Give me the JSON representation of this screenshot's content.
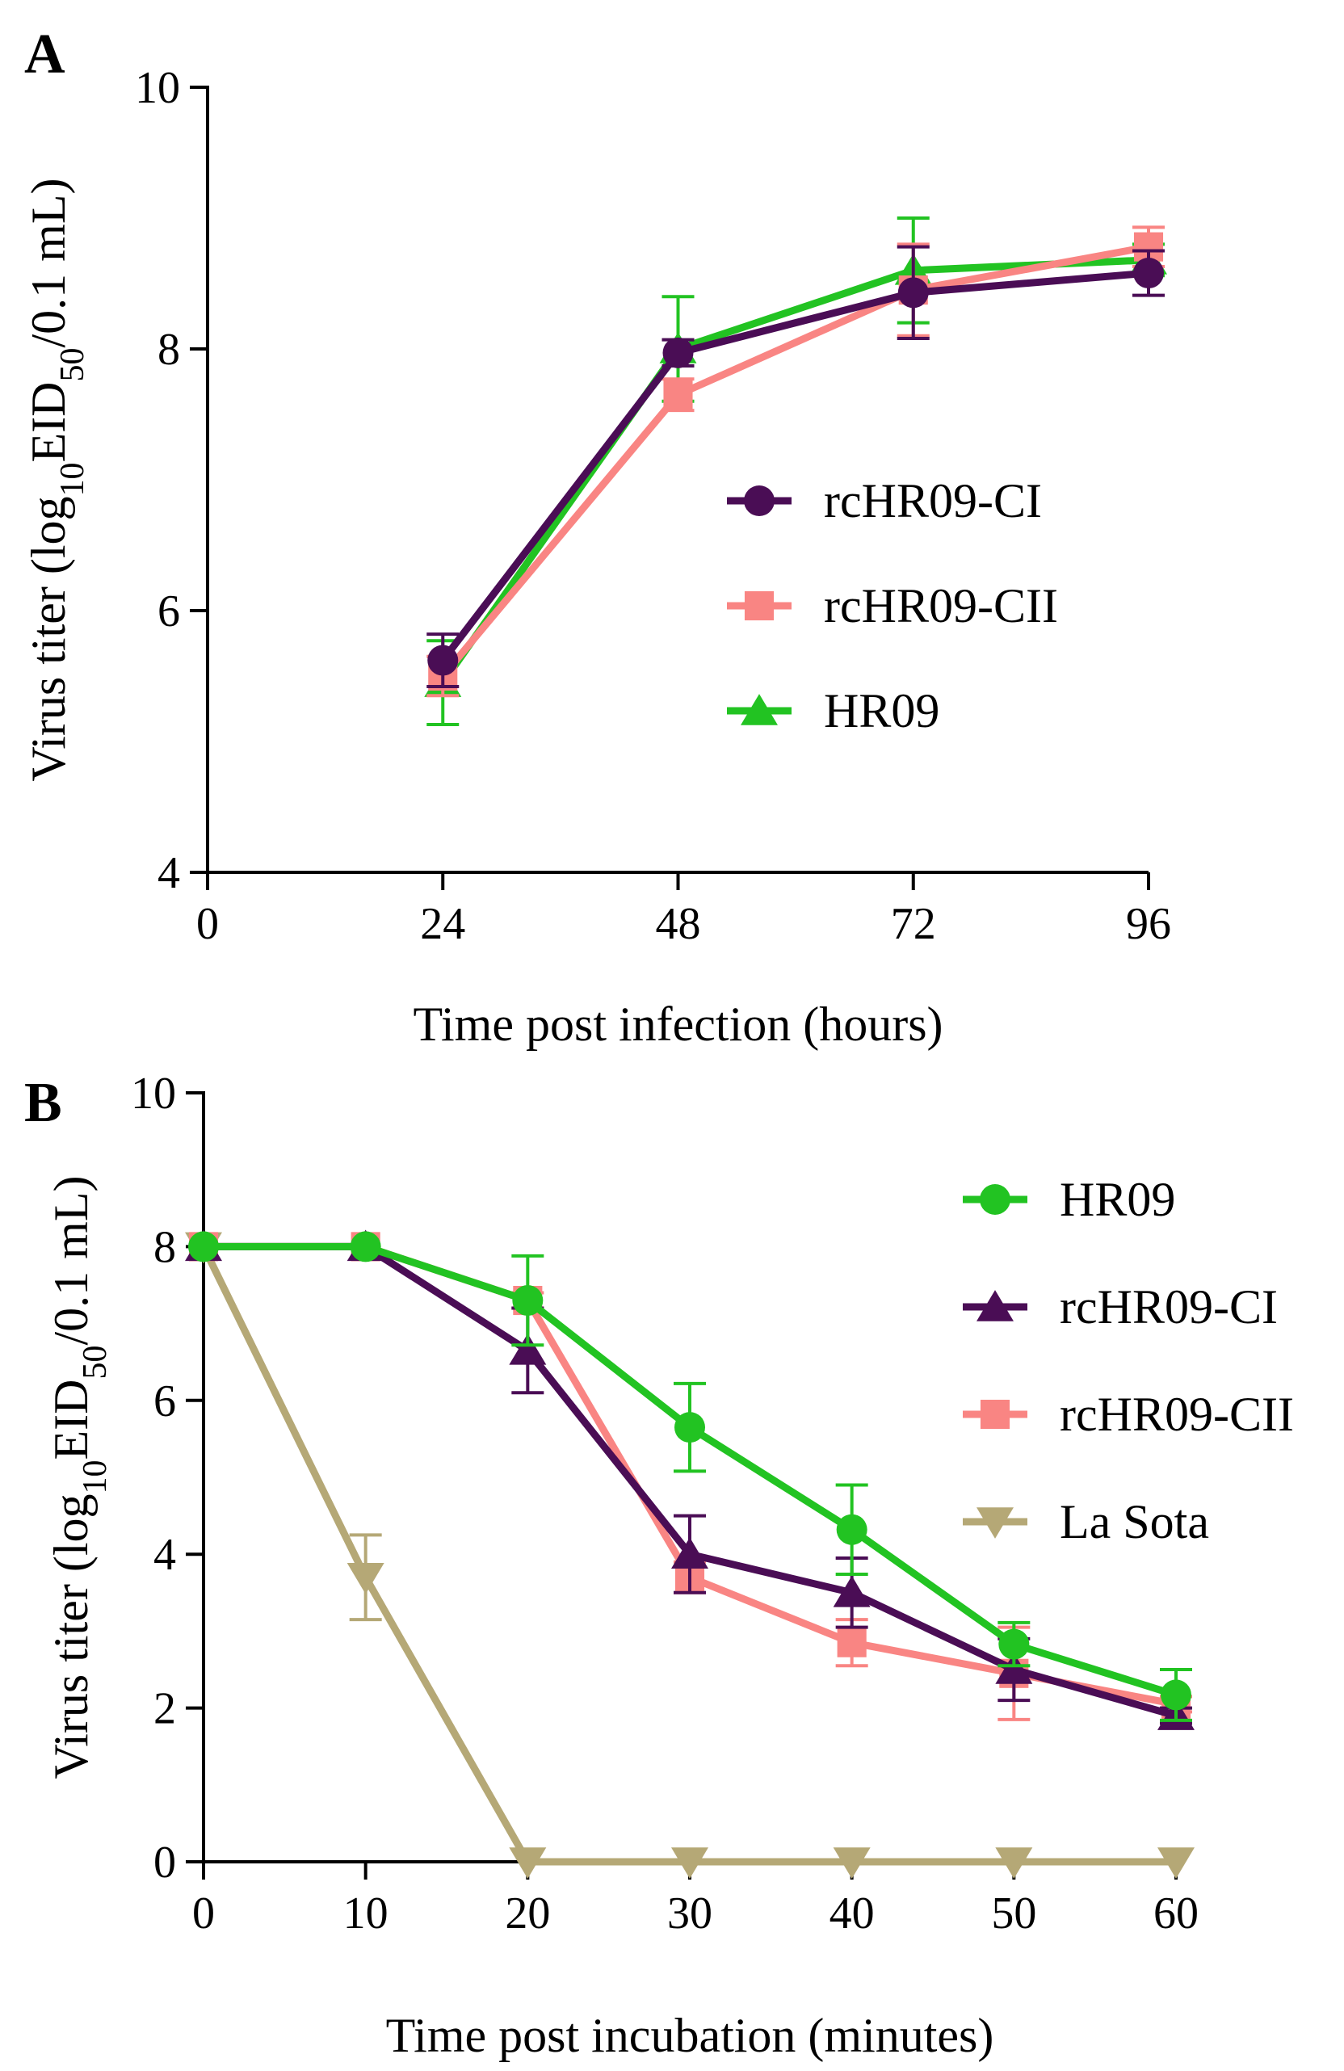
{
  "chart_data": [
    {
      "panel": "A",
      "type": "line",
      "xlabel": "Time post infection (hours)",
      "ylabel_parts": {
        "pre": "Virus titer (log",
        "sub1": "10",
        "mid": "EID",
        "sub2": "50",
        "post": "/0.1 mL)"
      },
      "xlim": [
        0,
        96
      ],
      "ylim": [
        4,
        10
      ],
      "xticks": [
        0,
        24,
        48,
        72,
        96
      ],
      "xtick_labels": [
        "0",
        "24",
        "48",
        "72",
        "96"
      ],
      "yticks": [
        4,
        6,
        8,
        10
      ],
      "ytick_labels": [
        "4",
        "6",
        "8",
        "10"
      ],
      "x": [
        24,
        48,
        72,
        96
      ],
      "legend_position": "middle-right",
      "series": [
        {
          "name": "HR09",
          "marker": "triangle-up",
          "color": "#22c322",
          "values": [
            5.45,
            8.0,
            8.6,
            8.68
          ],
          "errors": [
            0.32,
            0.4,
            0.4,
            0.12
          ]
        },
        {
          "name": "rcHR09-CII",
          "marker": "square",
          "color": "#f98583",
          "values": [
            5.5,
            7.65,
            8.45,
            8.78
          ],
          "errors": [
            0.15,
            0.12,
            0.35,
            0.15
          ]
        },
        {
          "name": "rcHR09-CI",
          "marker": "circle",
          "color": "#4a0d55",
          "values": [
            5.62,
            7.97,
            8.43,
            8.58
          ],
          "errors": [
            0.2,
            0.1,
            0.35,
            0.17
          ]
        }
      ],
      "legend_order": [
        "rcHR09-CI",
        "rcHR09-CII",
        "HR09"
      ]
    },
    {
      "panel": "B",
      "type": "line",
      "xlabel": "Time post incubation (minutes)",
      "ylabel_parts": {
        "pre": "Virus titer (log",
        "sub1": "10",
        "mid": "EID",
        "sub2": "50",
        "post": "/0.1 mL)"
      },
      "xlim": [
        0,
        60
      ],
      "ylim": [
        0,
        10
      ],
      "xticks": [
        0,
        10,
        20,
        30,
        40,
        50,
        60
      ],
      "xtick_labels": [
        "0",
        "10",
        "20",
        "30",
        "40",
        "50",
        "60"
      ],
      "yticks": [
        0,
        2,
        4,
        6,
        8,
        10
      ],
      "ytick_labels": [
        "0",
        "2",
        "4",
        "6",
        "8",
        "10"
      ],
      "x": [
        0,
        10,
        20,
        30,
        40,
        50,
        60
      ],
      "legend_position": "top-right",
      "series": [
        {
          "name": "La Sota",
          "marker": "triangle-down",
          "color": "#b5a876",
          "values": [
            8.0,
            3.7,
            0.0,
            0.0,
            0.0,
            0.0,
            0.0
          ],
          "errors": [
            0,
            0.55,
            0,
            0,
            0,
            0,
            0
          ]
        },
        {
          "name": "rcHR09-CII",
          "marker": "square",
          "color": "#f98583",
          "values": [
            8.0,
            8.0,
            7.3,
            3.7,
            2.85,
            2.45,
            2.05
          ],
          "errors": [
            0,
            0,
            0.1,
            0.2,
            0.3,
            0.6,
            0.1
          ]
        },
        {
          "name": "rcHR09-CI",
          "marker": "triangle-up",
          "color": "#4a0d55",
          "values": [
            8.0,
            8.0,
            6.65,
            4.0,
            3.5,
            2.5,
            1.9
          ],
          "errors": [
            0,
            0,
            0.55,
            0.5,
            0.45,
            0.4,
            0.1
          ]
        },
        {
          "name": "HR09",
          "marker": "circle",
          "color": "#22c322",
          "values": [
            8.0,
            8.0,
            7.3,
            5.65,
            4.32,
            2.83,
            2.17
          ],
          "errors": [
            0,
            0,
            0.58,
            0.57,
            0.58,
            0.28,
            0.33
          ]
        }
      ],
      "legend_order": [
        "HR09",
        "rcHR09-CI",
        "rcHR09-CII",
        "La Sota"
      ]
    }
  ]
}
